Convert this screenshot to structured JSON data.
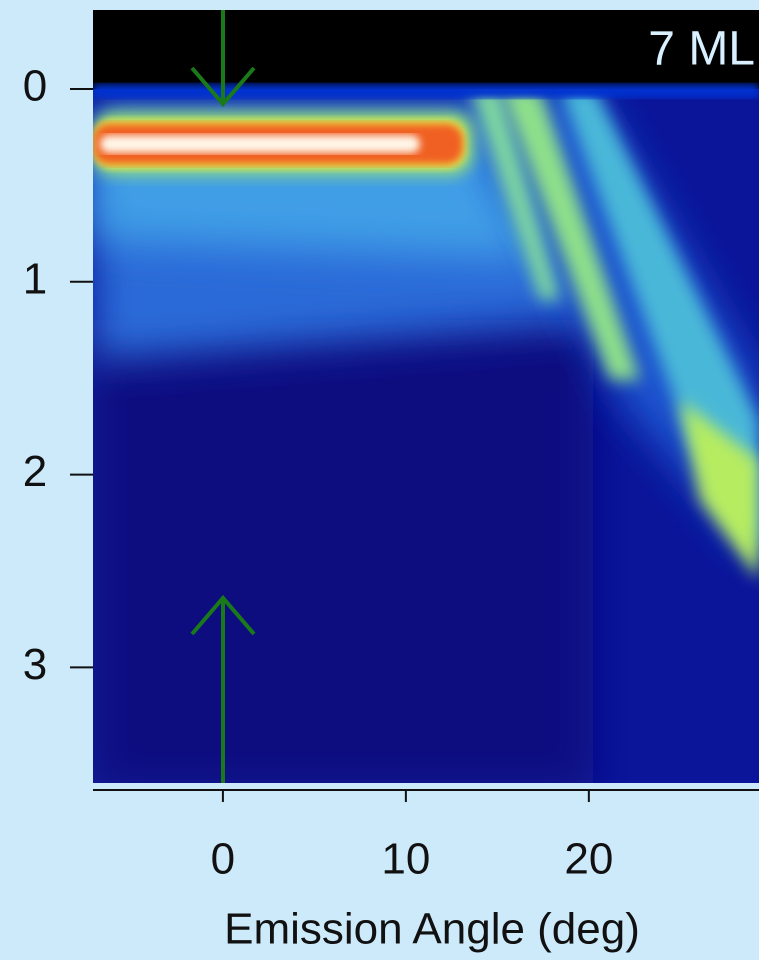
{
  "chart_data": {
    "type": "heatmap",
    "annotation": "7 ML",
    "xlabel": "Emission Angle (deg)",
    "xlim": [
      -7.1,
      29.3
    ],
    "xticks": [
      0,
      10,
      20
    ],
    "ylim": [
      -0.41,
      3.6
    ],
    "yticks": [
      0,
      1,
      2,
      3
    ],
    "y_inverted": true
  }
}
